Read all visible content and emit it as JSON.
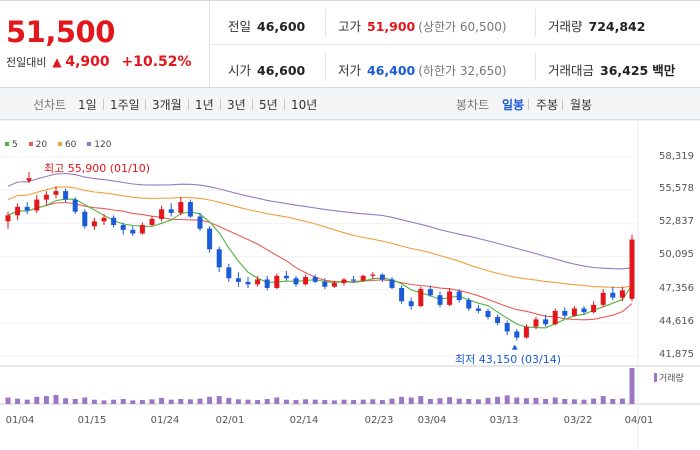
{
  "summary": {
    "price": "51,500",
    "change_label": "전일대비",
    "change_symbol": "▲",
    "change_amount": "4,900",
    "change_pct": "+10.52%",
    "prev_close_label": "전일",
    "prev_close": "46,600",
    "high_label": "고가",
    "high": "51,900",
    "upper_limit": "(상한가 60,500)",
    "volume_label": "거래량",
    "volume": "724,842",
    "open_label": "시가",
    "open": "46,600",
    "low_label": "저가",
    "low": "46,400",
    "lower_limit": "(하한가 32,650)",
    "amount_label": "거래대금",
    "amount": "36,425",
    "amount_unit": "백만"
  },
  "period": {
    "left_title": "선차트",
    "left_buttons": [
      "1일",
      "1주일",
      "3개월",
      "1년",
      "3년",
      "5년",
      "10년"
    ],
    "right_title": "봉차트",
    "right_buttons": [
      "일봉",
      "주봉",
      "월봉"
    ],
    "active_right": "일봉"
  },
  "colors": {
    "up": "#e3161c",
    "down": "#1a5bd8",
    "ma5": "#52b241",
    "ma20": "#e85c5c",
    "ma60": "#f0a040",
    "ma120": "#9b77c4",
    "volume": "#9b77c4"
  },
  "chart_data": {
    "type": "candlestick",
    "legend": [
      "5",
      "20",
      "60",
      "120"
    ],
    "y_ticks": [
      "58,319",
      "55,578",
      "52,837",
      "50,095",
      "47,356",
      "44,616",
      "41,875"
    ],
    "ylim": [
      41875,
      58319
    ],
    "x_ticks": [
      "01/04",
      "01/15",
      "01/24",
      "02/01",
      "02/14",
      "02/23",
      "03/04",
      "03/13",
      "03/22",
      "04/01"
    ],
    "high_annotation": "최고 55,900 (01/10)",
    "low_annotation": "최저 43,150 (03/14)",
    "volume_label": "거래량",
    "candles": [
      [
        53000,
        53800,
        52400,
        53500
      ],
      [
        53500,
        54500,
        53100,
        54200
      ],
      [
        54200,
        54600,
        53600,
        53900
      ],
      [
        53900,
        55200,
        53700,
        54800
      ],
      [
        54800,
        55500,
        54300,
        55200
      ],
      [
        55200,
        55900,
        54900,
        55500
      ],
      [
        55500,
        55700,
        54600,
        54800
      ],
      [
        54800,
        55000,
        53600,
        53800
      ],
      [
        53800,
        54000,
        52400,
        52600
      ],
      [
        52600,
        53300,
        52300,
        53000
      ],
      [
        53000,
        53600,
        52700,
        53300
      ],
      [
        53300,
        53500,
        52500,
        52700
      ],
      [
        52700,
        52900,
        51900,
        52300
      ],
      [
        52300,
        52600,
        51800,
        52000
      ],
      [
        52000,
        52900,
        51900,
        52700
      ],
      [
        52700,
        53400,
        52600,
        53200
      ],
      [
        53200,
        54300,
        53000,
        54000
      ],
      [
        54000,
        54500,
        53400,
        53700
      ],
      [
        53700,
        55000,
        53500,
        54600
      ],
      [
        54600,
        54800,
        53300,
        53400
      ],
      [
        53400,
        53700,
        52200,
        52400
      ],
      [
        52400,
        52600,
        50400,
        50700
      ],
      [
        50700,
        50900,
        48800,
        49200
      ],
      [
        49200,
        49500,
        48000,
        48300
      ],
      [
        48300,
        48800,
        47600,
        48000
      ],
      [
        48000,
        48400,
        47500,
        47800
      ],
      [
        47800,
        48500,
        47600,
        48200
      ],
      [
        48200,
        48500,
        47300,
        47500
      ],
      [
        47500,
        48700,
        47400,
        48500
      ],
      [
        48500,
        48900,
        48100,
        48300
      ],
      [
        48300,
        48500,
        47600,
        47800
      ],
      [
        47800,
        48600,
        47700,
        48400
      ],
      [
        48400,
        48600,
        47900,
        48000
      ],
      [
        48000,
        48300,
        47400,
        47600
      ],
      [
        47600,
        48100,
        47500,
        47900
      ],
      [
        47900,
        48300,
        47700,
        48200
      ],
      [
        48200,
        48500,
        47900,
        48100
      ],
      [
        48100,
        48600,
        48000,
        48500
      ],
      [
        48500,
        48800,
        48200,
        48600
      ],
      [
        48600,
        48700,
        48000,
        48200
      ],
      [
        48200,
        48400,
        47400,
        47500
      ],
      [
        47500,
        47700,
        46200,
        46400
      ],
      [
        46400,
        46700,
        45700,
        46000
      ],
      [
        46000,
        47600,
        45900,
        47400
      ],
      [
        47400,
        47700,
        46800,
        46900
      ],
      [
        46900,
        47200,
        45900,
        46100
      ],
      [
        46100,
        47500,
        46000,
        47200
      ],
      [
        47200,
        47400,
        46300,
        46500
      ],
      [
        46500,
        46700,
        45600,
        45800
      ],
      [
        45800,
        46100,
        45400,
        45600
      ],
      [
        45600,
        45800,
        44900,
        45100
      ],
      [
        45100,
        45300,
        44400,
        44600
      ],
      [
        44600,
        44800,
        43600,
        43900
      ],
      [
        43900,
        44100,
        43150,
        43400
      ],
      [
        43400,
        44500,
        43300,
        44300
      ],
      [
        44300,
        45100,
        44100,
        44900
      ],
      [
        44900,
        45300,
        44300,
        44500
      ],
      [
        44500,
        45800,
        44400,
        45600
      ],
      [
        45600,
        45900,
        45000,
        45200
      ],
      [
        45200,
        46000,
        45100,
        45800
      ],
      [
        45800,
        46000,
        45300,
        45500
      ],
      [
        45500,
        46400,
        45400,
        46100
      ],
      [
        46100,
        47400,
        45900,
        47100
      ],
      [
        47100,
        47600,
        46500,
        46700
      ],
      [
        46700,
        47600,
        46400,
        47300
      ],
      [
        46600,
        51900,
        46400,
        51500
      ]
    ],
    "volumes": [
      18,
      15,
      12,
      20,
      22,
      25,
      16,
      14,
      18,
      12,
      10,
      12,
      14,
      10,
      11,
      13,
      17,
      12,
      14,
      13,
      15,
      20,
      22,
      17,
      13,
      12,
      11,
      14,
      18,
      12,
      11,
      13,
      12,
      11,
      10,
      12,
      11,
      12,
      13,
      11,
      15,
      20,
      18,
      22,
      14,
      16,
      19,
      15,
      14,
      13,
      17,
      20,
      24,
      18,
      16,
      17,
      14,
      18,
      14,
      13,
      12,
      15,
      22,
      14,
      15,
      100
    ]
  }
}
